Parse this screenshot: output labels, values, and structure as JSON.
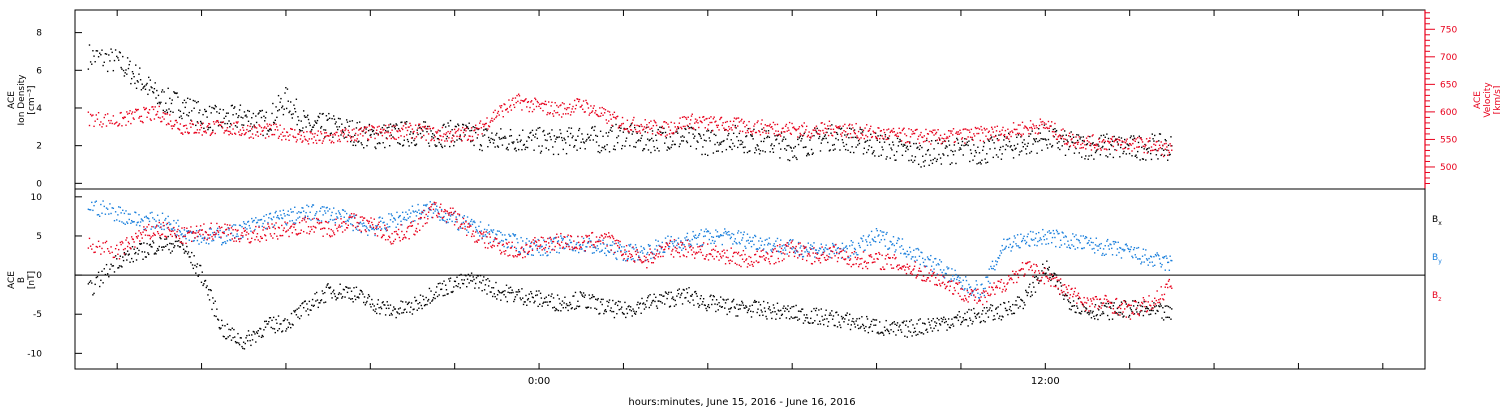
{
  "chart_data": [
    {
      "type": "scatter",
      "panel": "top",
      "ylabel_left": [
        "ACE",
        "Ion Density",
        "[cm⁻³]"
      ],
      "ylabel_right": [
        "ACE",
        "Velocity",
        "[km/s]"
      ],
      "ylim_left": [
        -0.3,
        9.2
      ],
      "ylim_right": [
        460,
        785
      ],
      "yticks_left": [
        0,
        2,
        4,
        6,
        8
      ],
      "yticks_right": [
        500,
        550,
        600,
        650,
        700,
        750
      ],
      "colors": {
        "density": "#000000",
        "velocity": "#e8001c"
      },
      "series": [
        {
          "axis": "left",
          "color": "#000000",
          "x": [
            -10.7,
            -10,
            -9.5,
            -9,
            -8.5,
            -8,
            -7.5,
            -7,
            -6.5,
            -6,
            -5.5,
            -5,
            -4.5,
            -4,
            -3.5,
            -3,
            -2.5,
            -2,
            -1.5,
            -1,
            -0.5,
            0,
            0.5,
            1,
            1.5,
            2,
            2.5,
            3,
            3.5,
            4,
            4.5,
            5,
            5.5,
            6,
            6.5,
            7,
            7.5,
            8,
            8.5,
            9,
            9.5,
            10,
            10.5,
            11,
            11.5,
            12,
            12.5,
            13,
            13.5,
            14,
            14.5,
            15
          ],
          "y": [
            6.8,
            6.5,
            5.6,
            4.5,
            4.2,
            3.6,
            3.4,
            3.6,
            3.2,
            4.5,
            3.0,
            3.1,
            2.8,
            2.5,
            2.6,
            2.7,
            2.6,
            2.7,
            2.5,
            2.3,
            2.4,
            2.3,
            2.2,
            2.5,
            2.3,
            2.6,
            2.3,
            2.5,
            2.4,
            2.2,
            2.5,
            2.3,
            2.2,
            1.9,
            2.3,
            2.5,
            2.3,
            2.1,
            1.8,
            1.6,
            1.7,
            1.8,
            1.7,
            2.0,
            2.1,
            2.5,
            2.1,
            2.0,
            2.0,
            1.9,
            2.0,
            1.9
          ]
        },
        {
          "axis": "right",
          "color": "#e8001c",
          "x": [
            -10.7,
            -10,
            -9.5,
            -9,
            -8.5,
            -8,
            -7.5,
            -7,
            -6.5,
            -6,
            -5.5,
            -5,
            -4.5,
            -4,
            -3.5,
            -3,
            -2.5,
            -2,
            -1.5,
            -1,
            -0.5,
            0,
            0.5,
            1,
            1.5,
            2,
            2.5,
            3,
            3.5,
            4,
            4.5,
            5,
            5.5,
            6,
            6.5,
            7,
            7.5,
            8,
            8.5,
            9,
            9.5,
            10,
            10.5,
            11,
            11.5,
            12,
            12.5,
            13,
            13.5,
            14,
            14.5,
            15
          ],
          "y": [
            590,
            585,
            595,
            598,
            574,
            571,
            573,
            568,
            566,
            564,
            552,
            554,
            559,
            563,
            565,
            567,
            561,
            558,
            565,
            600,
            620,
            610,
            605,
            615,
            595,
            580,
            575,
            570,
            585,
            580,
            578,
            574,
            572,
            570,
            566,
            572,
            566,
            562,
            558,
            557,
            555,
            558,
            561,
            564,
            572,
            577,
            552,
            546,
            544,
            543,
            540,
            530
          ]
        }
      ]
    },
    {
      "type": "scatter",
      "panel": "bottom",
      "ylabel_left": [
        "ACE",
        "B",
        "[nT]"
      ],
      "ylim": [
        -12,
        11
      ],
      "yticks": [
        -10,
        -5,
        0,
        5,
        10
      ],
      "zero_line": true,
      "xlabel": "hours:minutes, June 15, 2016 - June 16, 2016",
      "xlim": [
        -11,
        21
      ],
      "xticks_major": [
        0,
        12
      ],
      "xtick_labels": [
        "0:00",
        "12:00"
      ],
      "xtick_step_minor": 2,
      "series": [
        {
          "name": "Bx",
          "color": "#000000",
          "x": [
            -10.7,
            -10,
            -9.5,
            -9,
            -8.5,
            -8,
            -7.5,
            -7,
            -6.5,
            -6,
            -5.5,
            -5,
            -4.5,
            -4,
            -3.5,
            -3,
            -2.5,
            -2,
            -1.5,
            -1,
            -0.5,
            0,
            0.5,
            1,
            1.5,
            2,
            2.5,
            3,
            3.5,
            4,
            4.5,
            5,
            5.5,
            6,
            6.5,
            7,
            7.5,
            8,
            8.5,
            9,
            9.5,
            10,
            10.5,
            11,
            11.5,
            12,
            12.5,
            13,
            13.5,
            14,
            14.5,
            15
          ],
          "y": [
            -2,
            2,
            3,
            4,
            4,
            0,
            -7,
            -8.5,
            -6.5,
            -6,
            -4,
            -2,
            -2,
            -3.5,
            -4.5,
            -4,
            -2,
            -1,
            -0.5,
            -2,
            -2.5,
            -3,
            -3.5,
            -3,
            -4,
            -4.5,
            -3.5,
            -3,
            -2.5,
            -3.5,
            -4,
            -4.2,
            -4.5,
            -4.8,
            -5.2,
            -5.5,
            -6,
            -6.5,
            -7,
            -6.5,
            -6,
            -5.5,
            -5,
            -4.5,
            -3,
            1,
            -3,
            -4.5,
            -4.5,
            -4.2,
            -4.5,
            -5
          ]
        },
        {
          "name": "By",
          "color": "#1a7fdc",
          "x": [
            -10.7,
            -10,
            -9.5,
            -9,
            -8.5,
            -8,
            -7.5,
            -7,
            -6.5,
            -6,
            -5.5,
            -5,
            -4.5,
            -4,
            -3.5,
            -3,
            -2.5,
            -2,
            -1.5,
            -1,
            -0.5,
            0,
            0.5,
            1,
            1.5,
            2,
            2.5,
            3,
            3.5,
            4,
            4.5,
            5,
            5.5,
            6,
            6.5,
            7,
            7.5,
            8,
            8.5,
            9,
            9.5,
            10,
            10.5,
            11,
            11.5,
            12,
            12.5,
            13,
            13.5,
            14,
            14.5,
            15
          ],
          "y": [
            9,
            8,
            7,
            7,
            6,
            5,
            5,
            6,
            7,
            7.5,
            8,
            8,
            7,
            6,
            7,
            8,
            8.5,
            7,
            6,
            5,
            4,
            3.5,
            4,
            4,
            3.5,
            3,
            3,
            4,
            4.5,
            5,
            5,
            4.5,
            4,
            3.5,
            3.5,
            3,
            3.5,
            5,
            4,
            2.5,
            1,
            -1,
            -2,
            4,
            4.5,
            5,
            4.5,
            4,
            3.5,
            3,
            2,
            1.5
          ]
        },
        {
          "name": "Bz",
          "color": "#e8001c",
          "x": [
            -10.7,
            -10,
            -9.5,
            -9,
            -8.5,
            -8,
            -7.5,
            -7,
            -6.5,
            -6,
            -5.5,
            -5,
            -4.5,
            -4,
            -3.5,
            -3,
            -2.5,
            -2,
            -1.5,
            -1,
            -0.5,
            0,
            0.5,
            1,
            1.5,
            2,
            2.5,
            3,
            3.5,
            4,
            4.5,
            5,
            5.5,
            6,
            6.5,
            7,
            7.5,
            8,
            8.5,
            9,
            9.5,
            10,
            10.5,
            11,
            11.5,
            12,
            12.5,
            13,
            13.5,
            14,
            14.5,
            15
          ],
          "y": [
            4,
            3,
            5,
            6,
            5,
            5.5,
            6,
            5,
            5.5,
            6,
            6.5,
            6,
            7,
            6.5,
            5,
            6,
            8.5,
            7.5,
            5,
            4,
            3,
            4,
            4.5,
            4,
            5,
            3,
            2,
            3.5,
            3.5,
            3,
            2.5,
            2,
            2.5,
            3.5,
            2.5,
            3,
            2,
            2,
            1.5,
            0.5,
            -0.5,
            -2,
            -3,
            -1,
            1,
            0,
            -2,
            -3.5,
            -3.5,
            -4.5,
            -3.5,
            -1
          ]
        }
      ],
      "legend": {
        "placement": "right",
        "entries": [
          {
            "label": "B",
            "sub": "x",
            "color": "#000000"
          },
          {
            "label": "B",
            "sub": "y",
            "color": "#1a7fdc"
          },
          {
            "label": "B",
            "sub": "z",
            "color": "#e8001c"
          }
        ]
      }
    }
  ]
}
